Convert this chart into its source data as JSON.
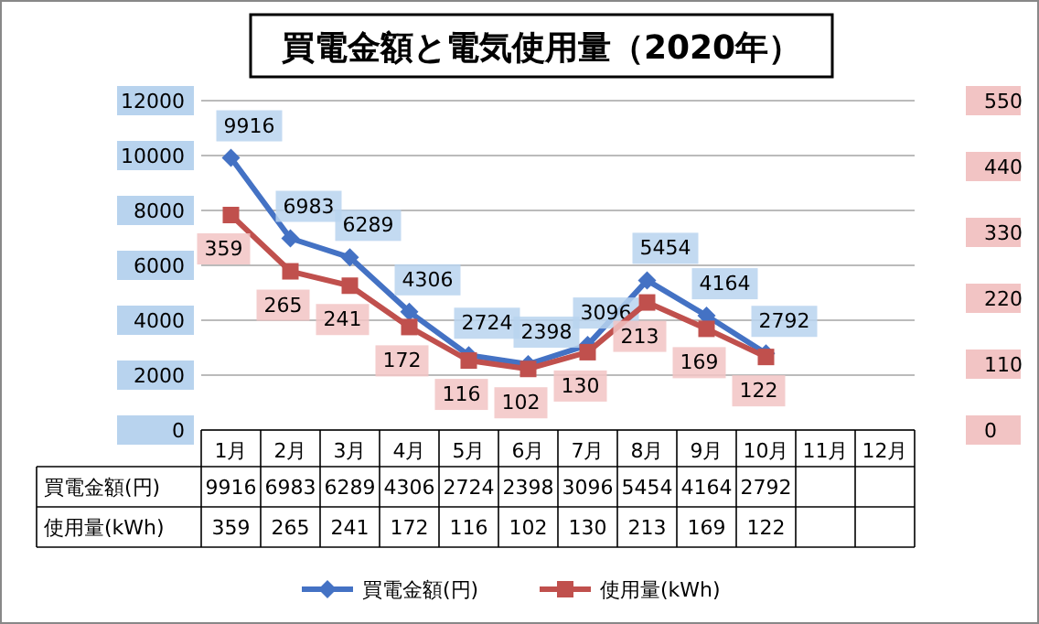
{
  "chart_data": {
    "type": "line",
    "title": "買電金額と電気使用量（2020年）",
    "categories": [
      "1月",
      "2月",
      "3月",
      "4月",
      "5月",
      "6月",
      "7月",
      "8月",
      "9月",
      "10月",
      "11月",
      "12月"
    ],
    "series": [
      {
        "name": "買電金額(円)",
        "color": "#4472c4",
        "marker": "diamond",
        "values": [
          9916,
          6983,
          6289,
          4306,
          2724,
          2398,
          3096,
          5454,
          4164,
          2792,
          null,
          null
        ],
        "value_labels": [
          "9916",
          "6983",
          "6289",
          "4306",
          "2724",
          "2398",
          "3096",
          "5454",
          "4164",
          "2792",
          null,
          null
        ]
      },
      {
        "name": "使用量(kWh)",
        "color": "#c0504d",
        "marker": "square",
        "axis": "y2",
        "values": [
          359,
          265,
          241,
          172,
          116,
          102,
          130,
          213,
          169,
          122,
          null,
          null
        ],
        "value_labels": [
          "359",
          "265",
          "241",
          "172",
          "116",
          "102",
          "130",
          "213",
          "169",
          "122",
          null,
          null
        ]
      }
    ],
    "ylim": [
      0,
      12000
    ],
    "yticks": [
      0,
      2000,
      4000,
      6000,
      8000,
      10000,
      12000
    ],
    "y2lim": [
      0,
      550
    ],
    "y2ticks": [
      0,
      110,
      220,
      330,
      440,
      550
    ],
    "annotations": [
      "9916",
      "6983",
      "6289",
      "4306",
      "2724",
      "2398",
      "3096",
      "5454",
      "4164",
      "2792",
      "359",
      "265",
      "241",
      "172",
      "116",
      "102",
      "130",
      "213",
      "169",
      "122"
    ],
    "grid": "y",
    "legend": "bottom"
  }
}
